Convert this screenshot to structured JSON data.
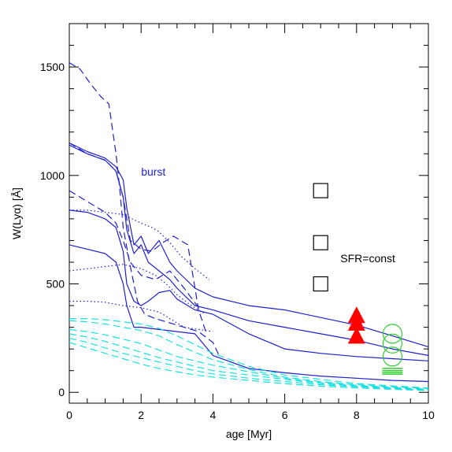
{
  "chart_data": {
    "type": "line",
    "xlabel": "age [Myr]",
    "ylabel": "W(Lyα) [Å]",
    "xlim": [
      0,
      10
    ],
    "ylim": [
      -50,
      1700
    ],
    "x_ticks": [
      0,
      2,
      4,
      6,
      8,
      10
    ],
    "y_ticks": [
      0,
      500,
      1000,
      1500
    ],
    "grid": false,
    "colors": {
      "blue": "#1f1fcc",
      "cyan": "#19e0e0",
      "red": "#ff0000",
      "green": "#33cc33",
      "black": "#000000"
    },
    "annotations": [
      {
        "text": "burst",
        "x": 2.0,
        "y": 1000,
        "color": "#1f1fcc"
      },
      {
        "text": "SFR=const",
        "x": 7.55,
        "y": 600,
        "color": "#000000"
      }
    ],
    "series": [
      {
        "style": "solid",
        "color": "#1f1fcc",
        "x": [
          0,
          0.5,
          1,
          1.3,
          1.5,
          1.6,
          1.8,
          2,
          2.2,
          2.5,
          2.8,
          3,
          3.5,
          4,
          5,
          6,
          7,
          8,
          9,
          10
        ],
        "y": [
          1150,
          1110,
          1080,
          1040,
          980,
          850,
          680,
          720,
          640,
          700,
          600,
          560,
          480,
          440,
          400,
          380,
          345,
          310,
          260,
          210
        ]
      },
      {
        "style": "solid",
        "color": "#1f1fcc",
        "x": [
          0,
          0.5,
          1,
          1.3,
          1.5,
          1.6,
          1.8,
          2,
          2.2,
          2.5,
          2.8,
          3,
          3.5,
          4,
          5,
          6,
          7,
          8,
          9,
          10
        ],
        "y": [
          1140,
          1100,
          1070,
          1020,
          900,
          750,
          640,
          680,
          600,
          560,
          520,
          480,
          400,
          380,
          330,
          300,
          270,
          240,
          200,
          170
        ]
      },
      {
        "style": "solid",
        "color": "#1f1fcc",
        "x": [
          0,
          0.5,
          1,
          1.3,
          1.5,
          1.6,
          1.8,
          2,
          2.2,
          2.5,
          2.8,
          3,
          3.5,
          4,
          5,
          6,
          7,
          8,
          9,
          10
        ],
        "y": [
          840,
          830,
          800,
          760,
          650,
          500,
          420,
          400,
          420,
          460,
          470,
          430,
          380,
          360,
          270,
          200,
          180,
          165,
          155,
          145
        ]
      },
      {
        "style": "solid",
        "color": "#1f1fcc",
        "x": [
          0,
          0.5,
          1,
          1.3,
          1.5,
          1.6,
          1.8,
          2,
          2.5,
          3,
          3.5,
          4,
          4.5,
          5,
          6,
          7,
          8,
          9,
          10
        ],
        "y": [
          680,
          660,
          640,
          600,
          500,
          400,
          300,
          300,
          290,
          280,
          270,
          170,
          140,
          110,
          90,
          75,
          65,
          55,
          50
        ]
      },
      {
        "style": "dashed",
        "color": "#1f1fcc",
        "x": [
          0,
          0.3,
          0.6,
          0.9,
          1.1,
          1.3,
          1.4,
          1.5,
          1.7,
          1.9,
          2.1,
          2.4,
          2.8,
          3.2,
          3.6,
          4.0,
          4.2
        ],
        "y": [
          1520,
          1490,
          1420,
          1360,
          1330,
          1100,
          950,
          760,
          580,
          420,
          360,
          340,
          320,
          300,
          280,
          230,
          160
        ]
      },
      {
        "style": "dashed",
        "color": "#1f1fcc",
        "x": [
          0,
          0.5,
          1,
          1.3,
          1.5,
          1.7,
          2,
          2.3,
          2.6,
          2.9,
          3.3,
          3.6,
          3.8
        ],
        "y": [
          1150,
          1100,
          1070,
          1020,
          900,
          700,
          660,
          650,
          690,
          720,
          680,
          380,
          280
        ]
      },
      {
        "style": "dashed",
        "color": "#1f1fcc",
        "x": [
          0,
          0.5,
          1,
          1.3,
          1.5,
          1.7,
          2,
          2.4,
          2.8,
          3.2,
          3.6
        ],
        "y": [
          930,
          880,
          830,
          780,
          700,
          600,
          540,
          520,
          560,
          480,
          390
        ]
      },
      {
        "style": "dotted",
        "color": "#1f1fcc",
        "x": [
          0,
          0.5,
          1,
          1.5,
          2,
          2.3,
          2.5,
          2.8,
          3.1,
          3.5,
          3.9
        ],
        "y": [
          840,
          840,
          830,
          820,
          780,
          760,
          740,
          690,
          630,
          570,
          520
        ]
      },
      {
        "style": "dotted",
        "color": "#1f1fcc",
        "x": [
          0,
          0.5,
          1,
          1.5,
          2,
          2.4,
          2.7,
          3,
          3.4,
          3.8
        ],
        "y": [
          560,
          570,
          580,
          590,
          570,
          540,
          500,
          450,
          400,
          360
        ]
      },
      {
        "style": "dotted",
        "color": "#1f1fcc",
        "x": [
          0,
          0.5,
          1,
          1.5,
          2,
          2.5,
          2.9,
          3.2,
          3.6,
          4.0
        ],
        "y": [
          420,
          420,
          415,
          400,
          390,
          370,
          330,
          300,
          290,
          280
        ]
      },
      {
        "style": "dashed",
        "color": "#19e0e0",
        "x": [
          0,
          0.5,
          1,
          1.5,
          2,
          2.5,
          3,
          3.5,
          4,
          5,
          6,
          7,
          8,
          9,
          10
        ],
        "y": [
          340,
          340,
          335,
          325,
          315,
          295,
          260,
          220,
          180,
          120,
          80,
          60,
          40,
          30,
          20
        ]
      },
      {
        "style": "dashed",
        "color": "#19e0e0",
        "x": [
          0,
          0.5,
          1,
          1.5,
          2,
          2.5,
          3,
          3.5,
          4,
          5,
          6,
          7,
          8,
          9,
          10
        ],
        "y": [
          330,
          325,
          315,
          300,
          285,
          260,
          220,
          185,
          150,
          105,
          70,
          50,
          35,
          25,
          18
        ]
      },
      {
        "style": "dashed",
        "color": "#19e0e0",
        "x": [
          0,
          0.5,
          1,
          1.5,
          2,
          2.5,
          3,
          3.5,
          4,
          5,
          6,
          7,
          8,
          9,
          10
        ],
        "y": [
          290,
          280,
          265,
          245,
          225,
          195,
          165,
          145,
          125,
          95,
          65,
          45,
          32,
          22,
          15
        ]
      },
      {
        "style": "dashed",
        "color": "#19e0e0",
        "x": [
          0,
          0.5,
          1,
          1.5,
          2,
          2.5,
          3,
          3.5,
          4,
          5,
          6,
          7,
          8,
          9,
          10
        ],
        "y": [
          270,
          255,
          235,
          210,
          185,
          160,
          140,
          120,
          100,
          80,
          60,
          40,
          28,
          20,
          12
        ]
      },
      {
        "style": "dashed",
        "color": "#19e0e0",
        "x": [
          0,
          0.5,
          1,
          1.5,
          2,
          2.5,
          3,
          3.5,
          4,
          5,
          6,
          7,
          8,
          9,
          10
        ],
        "y": [
          250,
          230,
          205,
          180,
          160,
          140,
          120,
          100,
          85,
          65,
          50,
          35,
          25,
          17,
          10
        ]
      },
      {
        "style": "dashed",
        "color": "#19e0e0",
        "x": [
          0,
          0.5,
          1,
          1.5,
          2,
          2.5,
          3,
          3.5,
          4,
          5,
          6,
          7,
          8,
          9,
          10
        ],
        "y": [
          230,
          205,
          180,
          155,
          130,
          110,
          95,
          80,
          70,
          55,
          40,
          28,
          20,
          14,
          8
        ]
      }
    ],
    "markers": [
      {
        "shape": "square",
        "color": "#000000",
        "x": 7,
        "y": 930
      },
      {
        "shape": "square",
        "color": "#000000",
        "x": 7,
        "y": 690
      },
      {
        "shape": "square",
        "color": "#000000",
        "x": 7,
        "y": 500
      },
      {
        "shape": "triangle",
        "color": "#ff0000",
        "x": 8,
        "y": 345
      },
      {
        "shape": "triangle",
        "color": "#ff0000",
        "x": 8,
        "y": 310
      },
      {
        "shape": "triangle",
        "color": "#ff0000",
        "x": 8,
        "y": 250
      },
      {
        "shape": "circle",
        "color": "#33cc33",
        "x": 9,
        "y": 270
      },
      {
        "shape": "circle",
        "color": "#33cc33",
        "x": 9,
        "y": 225
      },
      {
        "shape": "circle",
        "color": "#33cc33",
        "x": 9,
        "y": 165
      },
      {
        "shape": "hline",
        "color": "#33cc33",
        "x": 9,
        "y": 110
      },
      {
        "shape": "hline",
        "color": "#33cc33",
        "x": 9,
        "y": 100
      },
      {
        "shape": "hline",
        "color": "#33cc33",
        "x": 9,
        "y": 92
      },
      {
        "shape": "hline",
        "color": "#33cc33",
        "x": 9,
        "y": 84
      }
    ]
  }
}
